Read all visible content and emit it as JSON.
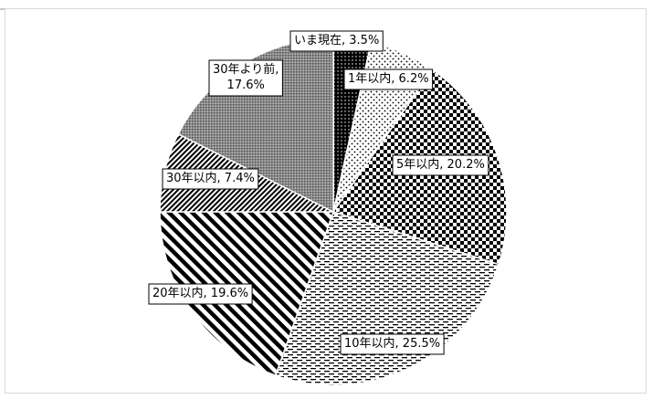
{
  "chart_data": {
    "type": "pie",
    "title": "",
    "slices": [
      {
        "label": "いま現在",
        "value": 3.5,
        "text": "いま現在, 3.5%",
        "pattern": "solid-black"
      },
      {
        "label": "1年以内",
        "value": 6.2,
        "text": "1年以内, 6.2%",
        "pattern": "dots-sparse"
      },
      {
        "label": "5年以内",
        "value": 20.2,
        "text": "5年以内, 20.2%",
        "pattern": "checker"
      },
      {
        "label": "10年以内",
        "value": 25.5,
        "text": "10年以内, 25.5%",
        "pattern": "dashes-horizontal"
      },
      {
        "label": "20年以内",
        "value": 19.6,
        "text": "20年以内, 19.6%",
        "pattern": "wide-diagonal"
      },
      {
        "label": "30年以内",
        "value": 7.4,
        "text": "30年以内, 7.4%",
        "pattern": "narrow-diagonal"
      },
      {
        "label": "30年より前",
        "value": 17.6,
        "text": "30年より前,|17.6%",
        "pattern": "dense-gray"
      }
    ],
    "legend": "none",
    "data_labels": "category-and-percent-callouts"
  }
}
